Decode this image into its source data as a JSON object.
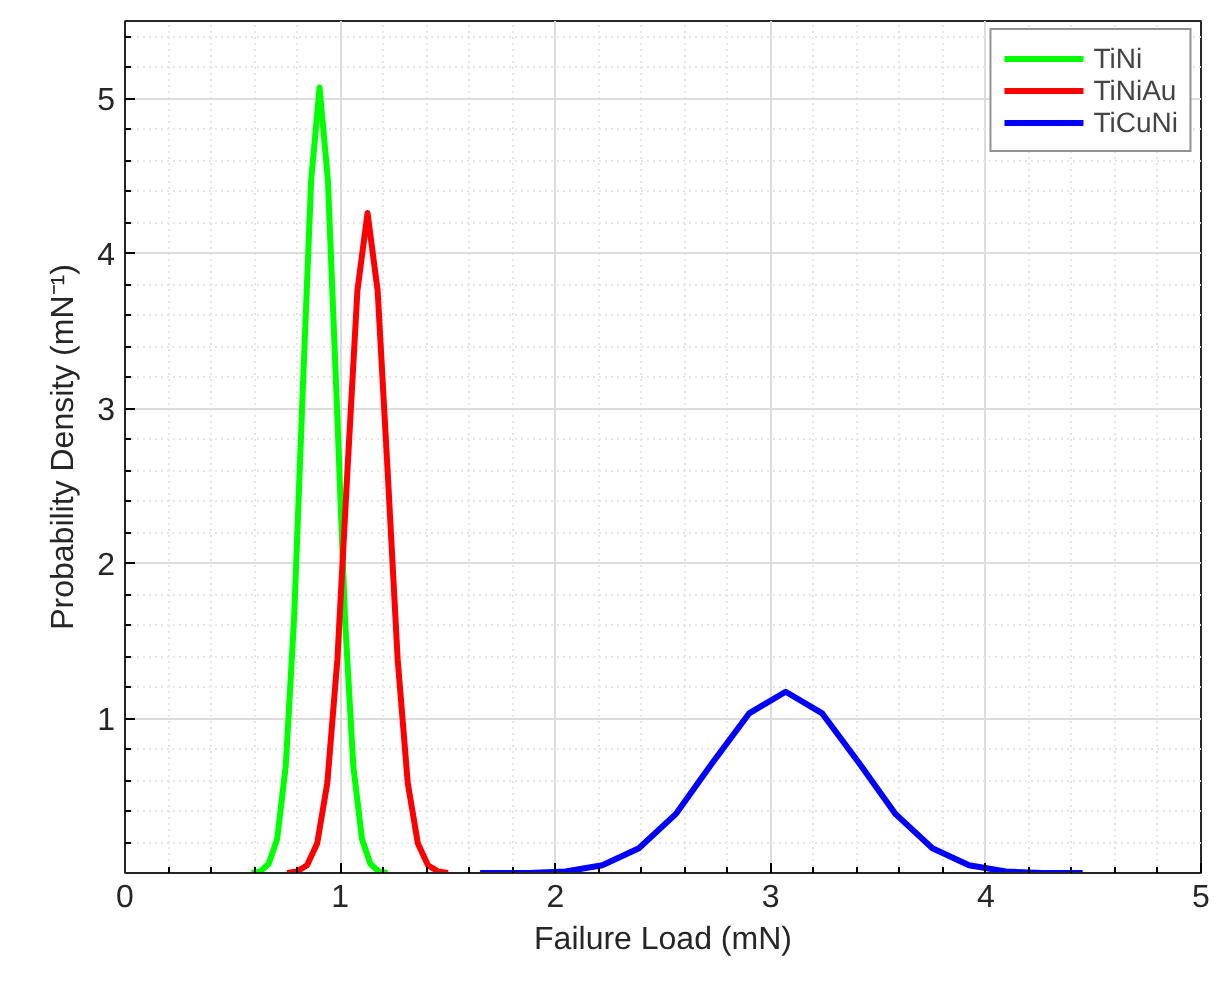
{
  "chart_data": {
    "type": "line",
    "xlabel": "Failure Load (mN)",
    "ylabel": "Probability Density (mN⁻¹)",
    "xlim": [
      0,
      5
    ],
    "ylim": [
      0,
      5.5
    ],
    "xticks": [
      0,
      1,
      2,
      3,
      4,
      5
    ],
    "yticks": [
      1,
      2,
      3,
      4,
      5
    ],
    "grid": true,
    "legend": "top right",
    "marker": "none",
    "line_style": "solid",
    "series": [
      {
        "name": "TiNi",
        "color": "#00ff00",
        "x": [
          0.589,
          0.629,
          0.668,
          0.707,
          0.747,
          0.786,
          0.825,
          0.865,
          0.904,
          0.943,
          0.983,
          1.022,
          1.061,
          1.101,
          1.14,
          1.179,
          1.219
        ],
        "values": [
          0.0,
          0.01,
          0.06,
          0.22,
          0.69,
          1.65,
          3.08,
          4.47,
          5.07,
          4.47,
          3.08,
          1.65,
          0.69,
          0.22,
          0.06,
          0.01,
          0.0
        ]
      },
      {
        "name": "TiNiAu",
        "color": "#ff0000",
        "x": [
          0.753,
          0.799,
          0.846,
          0.893,
          0.94,
          0.987,
          1.033,
          1.08,
          1.127,
          1.174,
          1.221,
          1.267,
          1.314,
          1.361,
          1.408,
          1.455,
          1.501
        ],
        "values": [
          0.0,
          0.01,
          0.05,
          0.19,
          0.58,
          1.38,
          2.58,
          3.76,
          4.26,
          3.76,
          2.58,
          1.38,
          0.58,
          0.19,
          0.05,
          0.01,
          0.0
        ]
      },
      {
        "name": "TiCuNi",
        "color": "#0000ff",
        "x": [
          1.65,
          1.877,
          2.047,
          2.218,
          2.388,
          2.559,
          2.729,
          2.9,
          3.07,
          3.24,
          3.411,
          3.581,
          3.752,
          3.922,
          4.093,
          4.263,
          4.45
        ],
        "values": [
          0.0,
          0.0,
          0.01,
          0.05,
          0.16,
          0.38,
          0.71,
          1.03,
          1.17,
          1.03,
          0.71,
          0.38,
          0.16,
          0.05,
          0.01,
          0.0,
          0.0
        ]
      }
    ]
  }
}
